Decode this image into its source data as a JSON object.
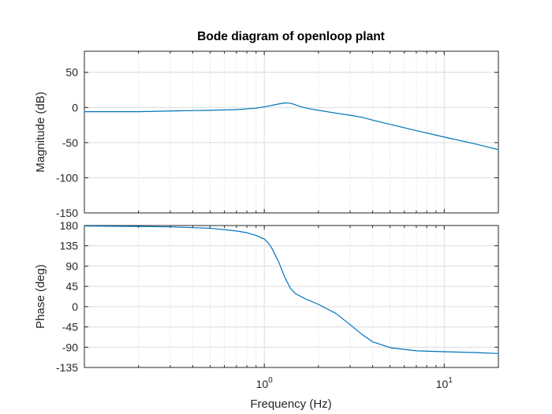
{
  "chart_data": {
    "type": "line",
    "title": "Bode diagram of openloop plant",
    "xlabel": "Frequency  (Hz)",
    "xscale": "log",
    "xlim": [
      0.1,
      20
    ],
    "x_ticks": [
      {
        "value": 1,
        "base": "10",
        "exp": "0"
      },
      {
        "value": 10,
        "base": "10",
        "exp": "1"
      }
    ],
    "grid": true,
    "line_color": "#0072BD",
    "panels": [
      {
        "name": "magnitude",
        "ylabel": "Magnitude (dB)",
        "ylim": [
          -150,
          80
        ],
        "yticks": [
          50,
          0,
          -50,
          -100,
          -150
        ],
        "ytick_labels": [
          "50",
          "0",
          "-50",
          "-100",
          "-150"
        ],
        "x": [
          0.1,
          0.2,
          0.3,
          0.5,
          0.7,
          0.9,
          1.0,
          1.1,
          1.2,
          1.3,
          1.4,
          1.5,
          1.6,
          1.8,
          2.0,
          2.5,
          3.0,
          3.5,
          4.0,
          5.0,
          7.0,
          10.0,
          15.0,
          20.0
        ],
        "y": [
          -6,
          -6,
          -5,
          -4,
          -3,
          -1,
          1,
          3,
          5,
          6.5,
          6,
          3.5,
          1,
          -2,
          -4,
          -8,
          -11,
          -14,
          -18,
          -24,
          -33,
          -42,
          -52,
          -60
        ]
      },
      {
        "name": "phase",
        "ylabel": "Phase (deg)",
        "ylim": [
          -135,
          180
        ],
        "yticks": [
          180,
          135,
          90,
          45,
          0,
          -45,
          -90,
          -135
        ],
        "ytick_labels": [
          "180",
          "135",
          "90",
          "45",
          "0",
          "-45",
          "-90",
          "-135"
        ],
        "x": [
          0.1,
          0.2,
          0.3,
          0.5,
          0.7,
          0.8,
          0.9,
          1.0,
          1.05,
          1.1,
          1.2,
          1.3,
          1.4,
          1.5,
          1.7,
          2.0,
          2.5,
          3.0,
          3.5,
          4.0,
          5.0,
          7.0,
          10.0,
          15.0,
          20.0
        ],
        "y": [
          179,
          178,
          177,
          174,
          168,
          164,
          158,
          150,
          142,
          130,
          100,
          65,
          40,
          28,
          17,
          5,
          -15,
          -40,
          -62,
          -78,
          -91,
          -98,
          -100,
          -102,
          -104
        ]
      }
    ]
  }
}
